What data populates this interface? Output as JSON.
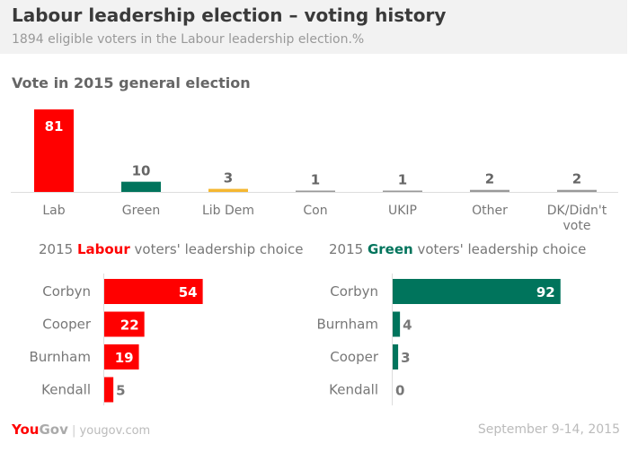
{
  "header": {
    "title": "Labour leadership election – voting history",
    "subtitle": "1894 eligible voters in the Labour leadership election.%"
  },
  "footer": {
    "logo": "YouGov",
    "site": "yougov.com",
    "date": "September 9-14, 2015"
  },
  "chart_data": [
    {
      "type": "bar",
      "title": "Vote in 2015 general election",
      "categories": [
        "Lab",
        "Green",
        "Lib Dem",
        "Con",
        "UKIP",
        "Other",
        "DK/Didn't vote"
      ],
      "values": [
        81,
        10,
        3,
        1,
        1,
        2,
        2
      ],
      "colors": [
        "#ff0000",
        "#00745c",
        "#f5b731",
        "#999999",
        "#999999",
        "#999999",
        "#999999"
      ]
    },
    {
      "type": "bar",
      "orientation": "horizontal",
      "title_parts": [
        "2015 ",
        "Labour",
        " voters' leadership choice"
      ],
      "accent": "#ff0000",
      "categories": [
        "Corbyn",
        "Cooper",
        "Burnham",
        "Kendall"
      ],
      "values": [
        54,
        22,
        19,
        5
      ]
    },
    {
      "type": "bar",
      "orientation": "horizontal",
      "title_parts": [
        "2015 ",
        "Green",
        " voters' leadership choice"
      ],
      "accent": "#00745c",
      "categories": [
        "Corbyn",
        "Burnham",
        "Cooper",
        "Kendall"
      ],
      "values": [
        92,
        4,
        3,
        0
      ]
    }
  ]
}
